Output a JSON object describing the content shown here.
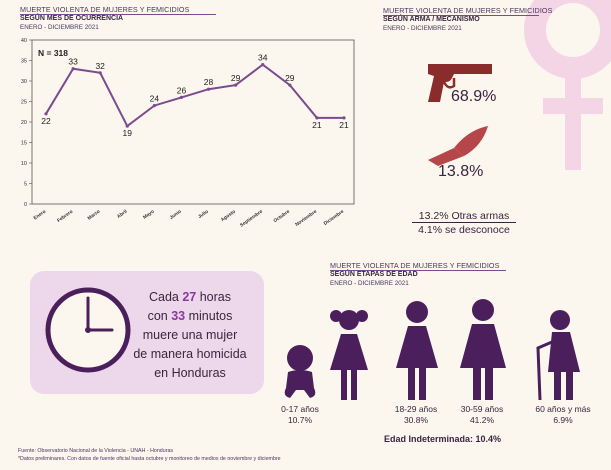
{
  "colors": {
    "accent": "#7b4a8f",
    "gun": "#8a2c2c",
    "knife": "#b5474b",
    "figure": "#4b1f5c",
    "clock_bg": "#ecd8ea",
    "venus": "#f3d5e6"
  },
  "month_section": {
    "title": "MUERTE VIOLENTA DE MUJERES Y FEMICIDIOS",
    "subtitle": "SEGÚN MES DE OCURRENCIA",
    "date": "ENERO - DICIEMBRE 2021"
  },
  "chart_data": {
    "type": "line",
    "annotation": "N = 318",
    "categories": [
      "Enero",
      "Febrero",
      "Marzo",
      "Abril",
      "Mayo",
      "Junio",
      "Julio",
      "Agosto",
      "Septiembre",
      "Octubre",
      "Noviembre",
      "Diciembre"
    ],
    "values": [
      22,
      33,
      32,
      19,
      24,
      26,
      28,
      29,
      34,
      29,
      21,
      21
    ],
    "yticks": [
      "0",
      "5",
      "10",
      "15",
      "20",
      "25",
      "30",
      "35",
      "40"
    ],
    "ylim": [
      0,
      40
    ],
    "grid": false,
    "title": "",
    "xlabel": "",
    "ylabel": ""
  },
  "weapon_section": {
    "title": "MUERTE VIOLENTA DE MUJERES Y FEMICIDIOS",
    "subtitle": "SEGÚN ARMA / MECANISMO",
    "date": "ENERO - DICIEMBRE 2021",
    "gun_pct": "68.9%",
    "knife_pct": "13.8%",
    "other_arms": "13.2% Otras armas",
    "unknown": "4.1% se desconoce"
  },
  "clock": {
    "line1_pre": "Cada ",
    "hours": "27",
    "line1_post": " horas",
    "line2_pre": "con ",
    "minutes": "33",
    "line2_post": " minutos",
    "line3": "muere una mujer",
    "line4": "de manera homicida",
    "line5": "en Honduras"
  },
  "age_section": {
    "title": "MUERTE VIOLENTA DE MUJERES Y FEMICIDIOS",
    "subtitle": "SEGÚN ETAPAS DE EDAD",
    "date": "ENERO - DICIEMBRE 2021",
    "groups": [
      {
        "label": "0-17 años",
        "pct": "10.7%"
      },
      {
        "label": "18-29 años",
        "pct": "30.8%"
      },
      {
        "label": "30-59 años",
        "pct": "41.2%"
      },
      {
        "label": "60 años y más",
        "pct": "6.9%"
      }
    ],
    "indeterminate": "Edad Indeterminada: 10.4%"
  },
  "footer": {
    "source": "Fuente: Observatorio Nacional de la Violencia - UNAH - Honduras",
    "note": "*Datos preliminares. Con datos de fuente oficial  hasta octubre y monitoreo de medios de noviembre y diciembre"
  }
}
